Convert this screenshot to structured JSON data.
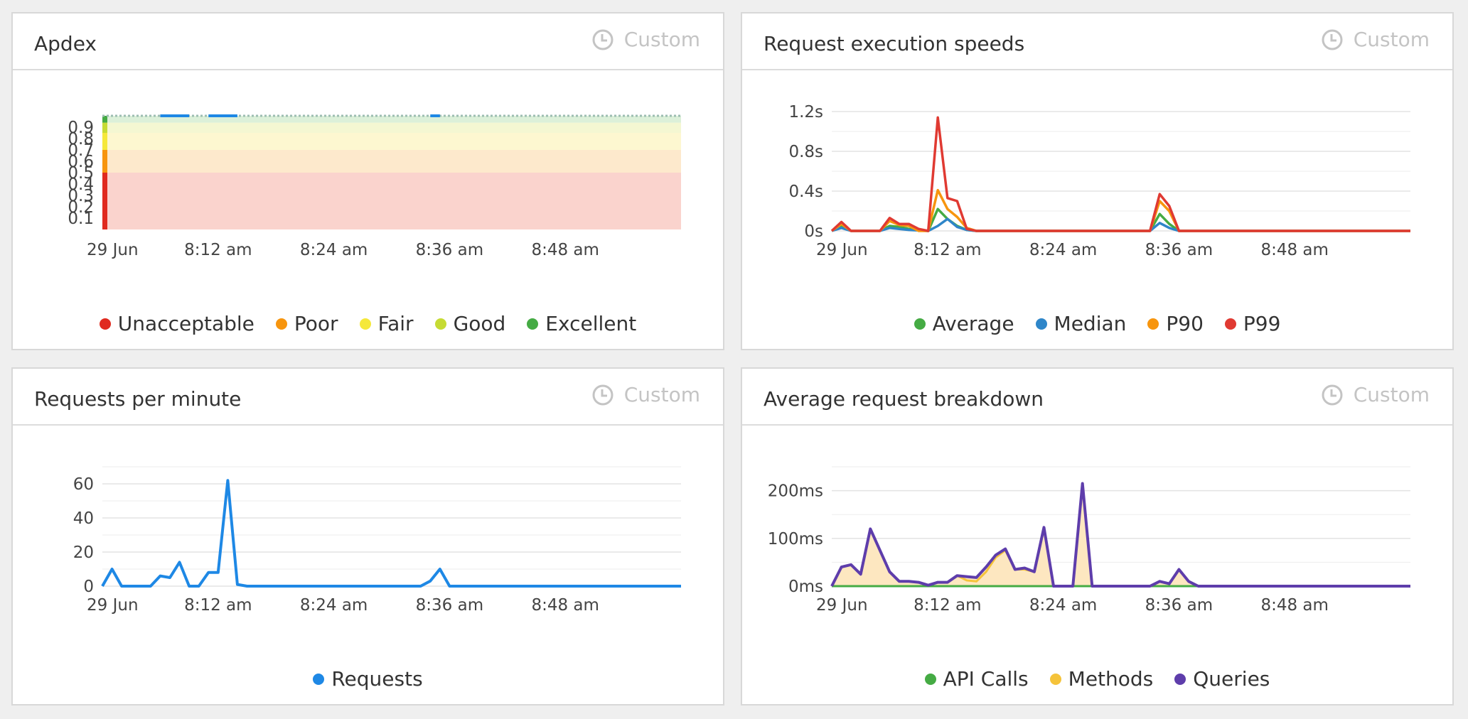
{
  "custom_label": "Custom",
  "panels": {
    "apdex": {
      "title": "Apdex",
      "legend": [
        {
          "label": "Unacceptable",
          "color": "#e02a1f"
        },
        {
          "label": "Poor",
          "color": "#f7950e"
        },
        {
          "label": "Fair",
          "color": "#f5e83a"
        },
        {
          "label": "Good",
          "color": "#c6db34"
        },
        {
          "label": "Excellent",
          "color": "#45ab44"
        }
      ]
    },
    "speeds": {
      "title": "Request execution speeds",
      "legend": [
        {
          "label": "Average",
          "color": "#45ab44"
        },
        {
          "label": "Median",
          "color": "#2f86c9"
        },
        {
          "label": "P90",
          "color": "#f7950e"
        },
        {
          "label": "P99",
          "color": "#e03a32"
        }
      ]
    },
    "rpm": {
      "title": "Requests per minute",
      "legend": [
        {
          "label": "Requests",
          "color": "#1e88e5"
        }
      ]
    },
    "breakdown": {
      "title": "Average request breakdown",
      "legend": [
        {
          "label": "API Calls",
          "color": "#45ab44"
        },
        {
          "label": "Methods",
          "color": "#f5c33a"
        },
        {
          "label": "Queries",
          "color": "#5e3dab"
        }
      ]
    }
  },
  "chart_data": [
    {
      "type": "area",
      "title": "Apdex",
      "x_tick_labels": [
        "29 Jun",
        "8:12 am",
        "8:24 am",
        "8:36 am",
        "8:48 am"
      ],
      "x_ticks": [
        0,
        12,
        24,
        36,
        48
      ],
      "xlim": [
        0,
        60
      ],
      "y_tick_labels": [
        "0.1",
        "0.2",
        "0.3",
        "0.4",
        "0.5",
        "0.6",
        "0.7",
        "0.8",
        "0.9"
      ],
      "y_ticks": [
        0.1,
        0.2,
        0.3,
        0.4,
        0.5,
        0.6,
        0.7,
        0.8,
        0.9
      ],
      "ylim": [
        0,
        1
      ],
      "bands": [
        {
          "name": "Unacceptable",
          "from": 0,
          "to": 0.5,
          "color": "#fad3cd"
        },
        {
          "name": "Poor",
          "from": 0.5,
          "to": 0.7,
          "color": "#fde9cc"
        },
        {
          "name": "Fair",
          "from": 0.7,
          "to": 0.85,
          "color": "#fdf7d0"
        },
        {
          "name": "Good",
          "from": 0.85,
          "to": 0.94,
          "color": "#f4f7d2"
        },
        {
          "name": "Excellent",
          "from": 0.94,
          "to": 1.0,
          "color": "#dcf0d9"
        }
      ],
      "series": [
        {
          "values": [
            [
              0,
              1
            ],
            [
              6,
              1
            ],
            [
              9,
              1
            ],
            [
              11,
              1
            ],
            [
              14,
              1
            ],
            [
              34,
              1
            ],
            [
              35,
              1
            ],
            [
              60,
              1
            ]
          ]
        }
      ]
    },
    {
      "type": "line",
      "title": "Request execution speeds",
      "x_tick_labels": [
        "29 Jun",
        "8:12 am",
        "8:24 am",
        "8:36 am",
        "8:48 am"
      ],
      "x_ticks": [
        0,
        12,
        24,
        36,
        48
      ],
      "xlim": [
        0,
        60
      ],
      "y_tick_labels": [
        "0s",
        "0.4s",
        "0.8s",
        "1.2s"
      ],
      "y_ticks": [
        0,
        0.4,
        0.8,
        1.2
      ],
      "ylim": [
        0,
        1.2
      ],
      "series": [
        {
          "name": "Average",
          "color": "#45ab44",
          "points": [
            [
              0,
              0
            ],
            [
              1,
              0.05
            ],
            [
              2,
              0
            ],
            [
              5,
              0
            ],
            [
              6,
              0.05
            ],
            [
              7,
              0.04
            ],
            [
              8,
              0.02
            ],
            [
              10,
              0
            ],
            [
              11,
              0.22
            ],
            [
              12,
              0.12
            ],
            [
              13,
              0.05
            ],
            [
              14,
              0.01
            ],
            [
              15,
              0
            ],
            [
              33,
              0
            ],
            [
              34,
              0.17
            ],
            [
              35,
              0.07
            ],
            [
              36,
              0
            ],
            [
              60,
              0
            ]
          ]
        },
        {
          "name": "Median",
          "color": "#2f86c9",
          "points": [
            [
              0,
              0
            ],
            [
              1,
              0.03
            ],
            [
              2,
              0
            ],
            [
              5,
              0
            ],
            [
              6,
              0.03
            ],
            [
              7,
              0.02
            ],
            [
              8,
              0.01
            ],
            [
              10,
              0
            ],
            [
              11,
              0.05
            ],
            [
              12,
              0.12
            ],
            [
              13,
              0.04
            ],
            [
              14,
              0.01
            ],
            [
              15,
              0
            ],
            [
              33,
              0
            ],
            [
              34,
              0.08
            ],
            [
              35,
              0.03
            ],
            [
              36,
              0
            ],
            [
              60,
              0
            ]
          ]
        },
        {
          "name": "P90",
          "color": "#f7950e",
          "points": [
            [
              0,
              0
            ],
            [
              1,
              0.07
            ],
            [
              2,
              0
            ],
            [
              5,
              0
            ],
            [
              6,
              0.1
            ],
            [
              7,
              0.06
            ],
            [
              8,
              0.05
            ],
            [
              9,
              0
            ],
            [
              10,
              0
            ],
            [
              11,
              0.41
            ],
            [
              12,
              0.22
            ],
            [
              13,
              0.14
            ],
            [
              14,
              0.03
            ],
            [
              15,
              0
            ],
            [
              33,
              0
            ],
            [
              34,
              0.3
            ],
            [
              35,
              0.2
            ],
            [
              36,
              0
            ],
            [
              60,
              0
            ]
          ]
        },
        {
          "name": "P99",
          "color": "#e03a32",
          "points": [
            [
              0,
              0
            ],
            [
              1,
              0.09
            ],
            [
              2,
              0
            ],
            [
              5,
              0
            ],
            [
              6,
              0.13
            ],
            [
              7,
              0.07
            ],
            [
              8,
              0.07
            ],
            [
              9,
              0.02
            ],
            [
              10,
              0
            ],
            [
              11,
              1.14
            ],
            [
              12,
              0.33
            ],
            [
              13,
              0.3
            ],
            [
              14,
              0.02
            ],
            [
              15,
              0
            ],
            [
              33,
              0
            ],
            [
              34,
              0.37
            ],
            [
              35,
              0.25
            ],
            [
              36,
              0
            ],
            [
              60,
              0
            ]
          ]
        }
      ]
    },
    {
      "type": "line",
      "title": "Requests per minute",
      "x_tick_labels": [
        "29 Jun",
        "8:12 am",
        "8:24 am",
        "8:36 am",
        "8:48 am"
      ],
      "x_ticks": [
        0,
        12,
        24,
        36,
        48
      ],
      "xlim": [
        0,
        60
      ],
      "y_tick_labels": [
        "0",
        "20",
        "40",
        "60"
      ],
      "y_ticks": [
        0,
        20,
        40,
        60
      ],
      "ylim": [
        0,
        70
      ],
      "series": [
        {
          "name": "Requests",
          "color": "#1e88e5",
          "points": [
            [
              0,
              0
            ],
            [
              1,
              10
            ],
            [
              2,
              0
            ],
            [
              3,
              0
            ],
            [
              4,
              0
            ],
            [
              5,
              0
            ],
            [
              6,
              6
            ],
            [
              7,
              5
            ],
            [
              8,
              14
            ],
            [
              9,
              0
            ],
            [
              10,
              0
            ],
            [
              11,
              8
            ],
            [
              12,
              8
            ],
            [
              13,
              62
            ],
            [
              14,
              1
            ],
            [
              15,
              0
            ],
            [
              33,
              0
            ],
            [
              34,
              3
            ],
            [
              35,
              10
            ],
            [
              36,
              0
            ],
            [
              60,
              0
            ]
          ]
        }
      ]
    },
    {
      "type": "area",
      "title": "Average request breakdown",
      "x_tick_labels": [
        "29 Jun",
        "8:12 am",
        "8:24 am",
        "8:36 am",
        "8:48 am"
      ],
      "x_ticks": [
        0,
        12,
        24,
        36,
        48
      ],
      "xlim": [
        0,
        60
      ],
      "y_tick_labels": [
        "0ms",
        "100ms",
        "200ms"
      ],
      "y_ticks": [
        0,
        100,
        200
      ],
      "ylim": [
        0,
        250
      ],
      "series": [
        {
          "name": "API Calls",
          "color": "#45ab44",
          "points": [
            [
              0,
              0
            ],
            [
              60,
              0
            ]
          ]
        },
        {
          "name": "Methods",
          "color": "#f5c33a",
          "points": [
            [
              0,
              0
            ],
            [
              1,
              40
            ],
            [
              2,
              45
            ],
            [
              3,
              25
            ],
            [
              4,
              120
            ],
            [
              5,
              75
            ],
            [
              6,
              30
            ],
            [
              7,
              10
            ],
            [
              8,
              10
            ],
            [
              9,
              8
            ],
            [
              10,
              2
            ],
            [
              11,
              8
            ],
            [
              12,
              8
            ],
            [
              13,
              22
            ],
            [
              14,
              12
            ],
            [
              15,
              10
            ],
            [
              16,
              30
            ],
            [
              17,
              60
            ],
            [
              18,
              75
            ],
            [
              19,
              35
            ],
            [
              20,
              35
            ],
            [
              21,
              30
            ],
            [
              22,
              123
            ],
            [
              23,
              0
            ],
            [
              24,
              0
            ],
            [
              25,
              0
            ],
            [
              26,
              215
            ],
            [
              27,
              0
            ],
            [
              33,
              0
            ],
            [
              34,
              10
            ],
            [
              35,
              5
            ],
            [
              36,
              35
            ],
            [
              37,
              10
            ],
            [
              38,
              0
            ],
            [
              60,
              0
            ]
          ]
        },
        {
          "name": "Queries",
          "color": "#5e3dab",
          "points": [
            [
              0,
              0
            ],
            [
              1,
              40
            ],
            [
              2,
              45
            ],
            [
              3,
              25
            ],
            [
              4,
              120
            ],
            [
              5,
              75
            ],
            [
              6,
              30
            ],
            [
              7,
              10
            ],
            [
              8,
              10
            ],
            [
              9,
              8
            ],
            [
              10,
              2
            ],
            [
              11,
              8
            ],
            [
              12,
              8
            ],
            [
              13,
              22
            ],
            [
              14,
              20
            ],
            [
              15,
              18
            ],
            [
              16,
              40
            ],
            [
              17,
              65
            ],
            [
              18,
              78
            ],
            [
              19,
              35
            ],
            [
              20,
              38
            ],
            [
              21,
              30
            ],
            [
              22,
              123
            ],
            [
              23,
              0
            ],
            [
              24,
              0
            ],
            [
              25,
              0
            ],
            [
              26,
              215
            ],
            [
              27,
              0
            ],
            [
              33,
              0
            ],
            [
              34,
              10
            ],
            [
              35,
              5
            ],
            [
              36,
              35
            ],
            [
              37,
              10
            ],
            [
              38,
              0
            ],
            [
              60,
              0
            ]
          ]
        }
      ]
    }
  ]
}
